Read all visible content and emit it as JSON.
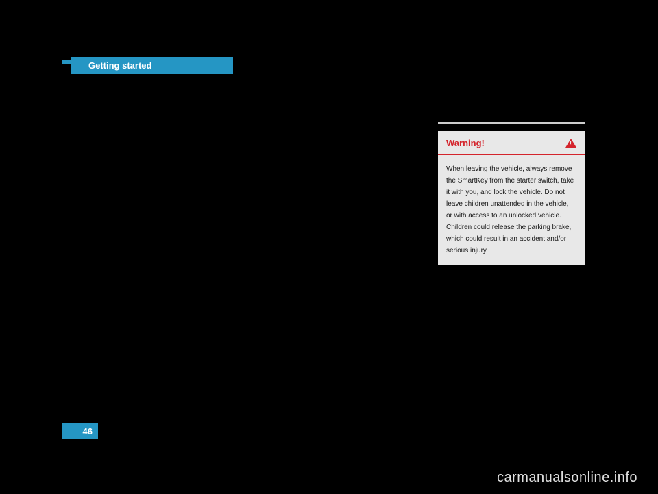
{
  "header": {
    "title": "Getting started",
    "background_color": "#2596c4",
    "text_color": "#ffffff"
  },
  "warning_box": {
    "title": "Warning!",
    "title_color": "#d4242c",
    "background_color": "#e8e8e8",
    "border_color": "#d4242c",
    "body_text": "When leaving the vehicle, always remove the SmartKey from the starter switch, take it with you, and lock the vehicle. Do not leave children unattended in the vehicle, or with access to an unlocked vehicle. Children could release the parking brake, which could result in an accident and/or serious injury."
  },
  "page": {
    "number": "46",
    "background_color": "#2596c4",
    "text_color": "#ffffff"
  },
  "watermark": {
    "text": "carmanualsonline.info",
    "color": "#e0e0e0"
  },
  "colors": {
    "page_background": "#000000",
    "accent_blue": "#2596c4",
    "warning_red": "#d4242c",
    "warning_bg": "#e8e8e8"
  }
}
